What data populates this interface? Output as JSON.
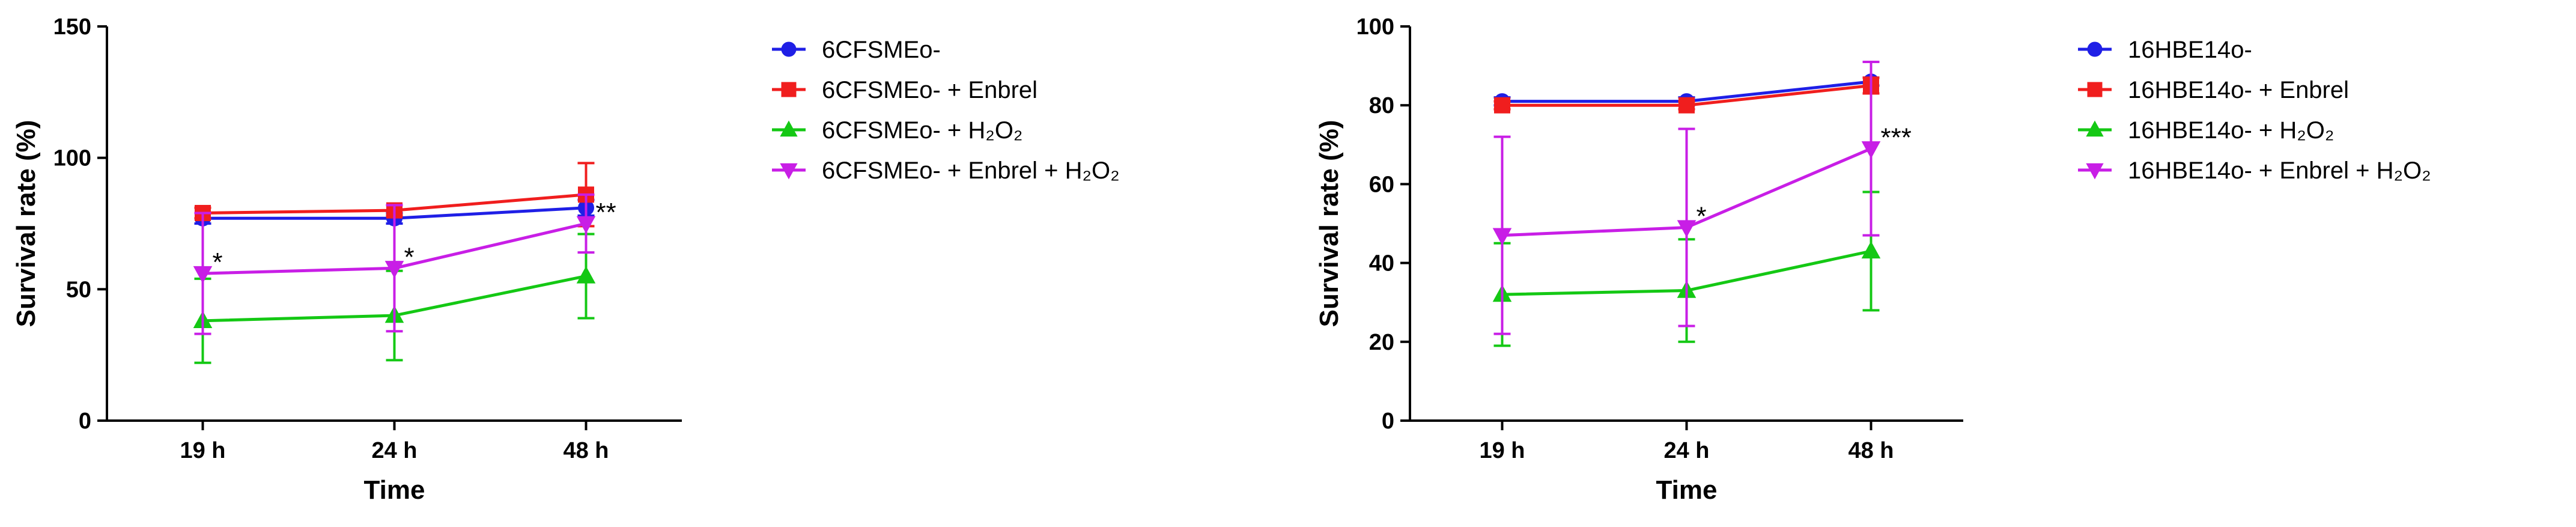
{
  "chart_data": [
    {
      "type": "line",
      "ylabel": "Survival rate (%)",
      "xlabel": "Time",
      "categories": [
        "19 h",
        "24 h",
        "48 h"
      ],
      "ylim": [
        0,
        150
      ],
      "yticks": [
        0,
        50,
        100,
        150
      ],
      "series": [
        {
          "name": "6CFSMEo-",
          "color": "#1f1fe6",
          "marker": "circle",
          "values": [
            77,
            77,
            81
          ],
          "errors": [
            2,
            2,
            3
          ]
        },
        {
          "name": "6CFSMEo- + Enbrel",
          "color": "#f01e1e",
          "marker": "square",
          "values": [
            79,
            80,
            86
          ],
          "errors": [
            2,
            2,
            12
          ]
        },
        {
          "name": "6CFSMEo- + H₂O₂",
          "color": "#14c814",
          "marker": "triangle-up",
          "values": [
            38,
            40,
            55
          ],
          "errors": [
            16,
            17,
            16
          ]
        },
        {
          "name": "6CFSMEo- + Enbrel + H₂O₂",
          "color": "#c81ee6",
          "marker": "triangle-down",
          "values": [
            56,
            58,
            75
          ],
          "errors": [
            23,
            24,
            11
          ]
        }
      ],
      "annotations": [
        {
          "text": "*",
          "category": "19 h"
        },
        {
          "text": "*",
          "category": "24 h"
        },
        {
          "text": "**",
          "category": "48 h"
        }
      ]
    },
    {
      "type": "line",
      "ylabel": "Survival rate (%)",
      "xlabel": "Time",
      "categories": [
        "19 h",
        "24 h",
        "48 h"
      ],
      "ylim": [
        0,
        100
      ],
      "yticks": [
        0,
        20,
        40,
        60,
        80,
        100
      ],
      "series": [
        {
          "name": "16HBE14o-",
          "color": "#1f1fe6",
          "marker": "circle",
          "values": [
            81,
            81,
            86
          ],
          "errors": [
            1,
            1,
            1
          ]
        },
        {
          "name": "16HBE14o- + Enbrel",
          "color": "#f01e1e",
          "marker": "square",
          "values": [
            80,
            80,
            85
          ],
          "errors": [
            1,
            1,
            2
          ]
        },
        {
          "name": "16HBE14o- + H₂O₂",
          "color": "#14c814",
          "marker": "triangle-up",
          "values": [
            32,
            33,
            43
          ],
          "errors": [
            13,
            13,
            15
          ]
        },
        {
          "name": "16HBE14o- + Enbrel + H₂O₂",
          "color": "#c81ee6",
          "marker": "triangle-down",
          "values": [
            47,
            49,
            69
          ],
          "errors": [
            25,
            25,
            22
          ]
        }
      ],
      "annotations": [
        {
          "text": "*",
          "category": "24 h"
        },
        {
          "text": "***",
          "category": "48 h"
        }
      ]
    }
  ]
}
